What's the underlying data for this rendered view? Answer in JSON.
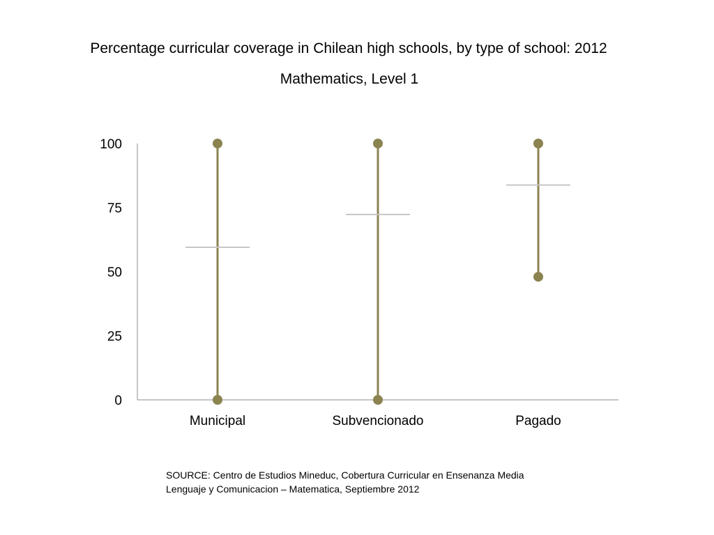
{
  "chart_data": {
    "type": "range",
    "title": "Percentage curricular coverage in Chilean high schools, by type of school: 2012",
    "subtitle": "Mathematics, Level 1",
    "categories": [
      "Municipal",
      "Subvencionado",
      "Pagado"
    ],
    "series": [
      {
        "values": [
          {
            "min": 0,
            "max": 100,
            "mean": 59.5
          },
          {
            "min": 0,
            "max": 100,
            "mean": 72.3
          },
          {
            "min": 48,
            "max": 100,
            "mean": 83.8
          }
        ]
      }
    ],
    "ylim": [
      0,
      100
    ],
    "yticks": [
      "0",
      "25",
      "50",
      "75",
      "100"
    ],
    "grid": false,
    "colors": {
      "range": "#8b8350",
      "mean": "#c6c6c6",
      "axis": "#8c8c8c"
    }
  },
  "source": {
    "line1": "SOURCE: Centro de Estudios Mineduc, Cobertura Curricular en Ensenanza Media",
    "line2": "Lenguaje y Comunicacion – Matematica, Septiembre 2012"
  }
}
